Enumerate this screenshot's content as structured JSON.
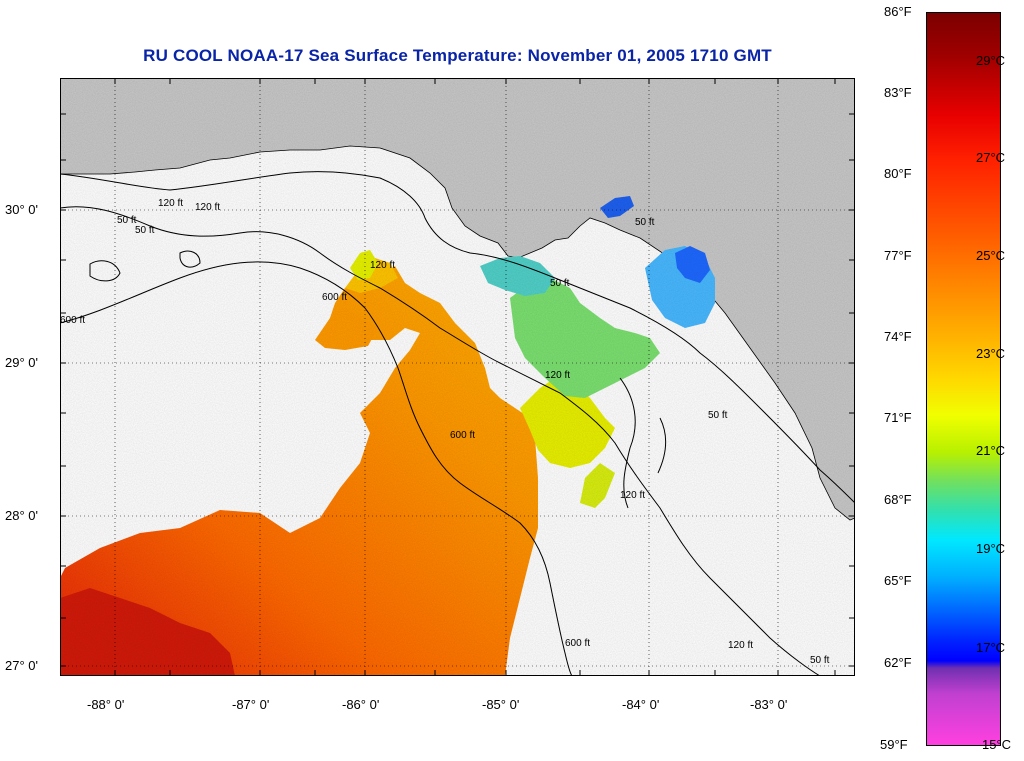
{
  "title": "RU COOL  NOAA-17  Sea Surface Temperature:  November 01, 2005 1710 GMT",
  "lat_labels": [
    "30° 0'",
    "29° 0'",
    "28° 0'",
    "27° 0'"
  ],
  "lon_labels": [
    "-88° 0'",
    "-87° 0'",
    "-86° 0'",
    "-85° 0'",
    "-84° 0'",
    "-83° 0'"
  ],
  "colorbar": {
    "fahrenheit": [
      "86°F",
      "83°F",
      "80°F",
      "77°F",
      "74°F",
      "71°F",
      "68°F",
      "65°F",
      "62°F",
      "59°F"
    ],
    "celsius": [
      "29°C",
      "27°C",
      "25°C",
      "23°C",
      "21°C",
      "19°C",
      "17°C",
      "15°C"
    ]
  },
  "contours": {
    "c50_a": "50 ft",
    "c50_b": "50 ft",
    "c50_c": "50 ft",
    "c50_d": "50 ft",
    "c50_e": "50 ft",
    "c50_f": "50 ft",
    "c120_a": "120 ft",
    "c120_b": "120 ft",
    "c120_c": "120 ft",
    "c120_d": "120 ft",
    "c120_e": "120 ft",
    "c120_f": "120 ft",
    "c600_a": "600 ft",
    "c600_b": "600 ft",
    "c600_c": "600 ft",
    "c600_d": "600 ft"
  },
  "colors": {
    "land": "#c8c8c8",
    "title": "#0a24a8"
  }
}
